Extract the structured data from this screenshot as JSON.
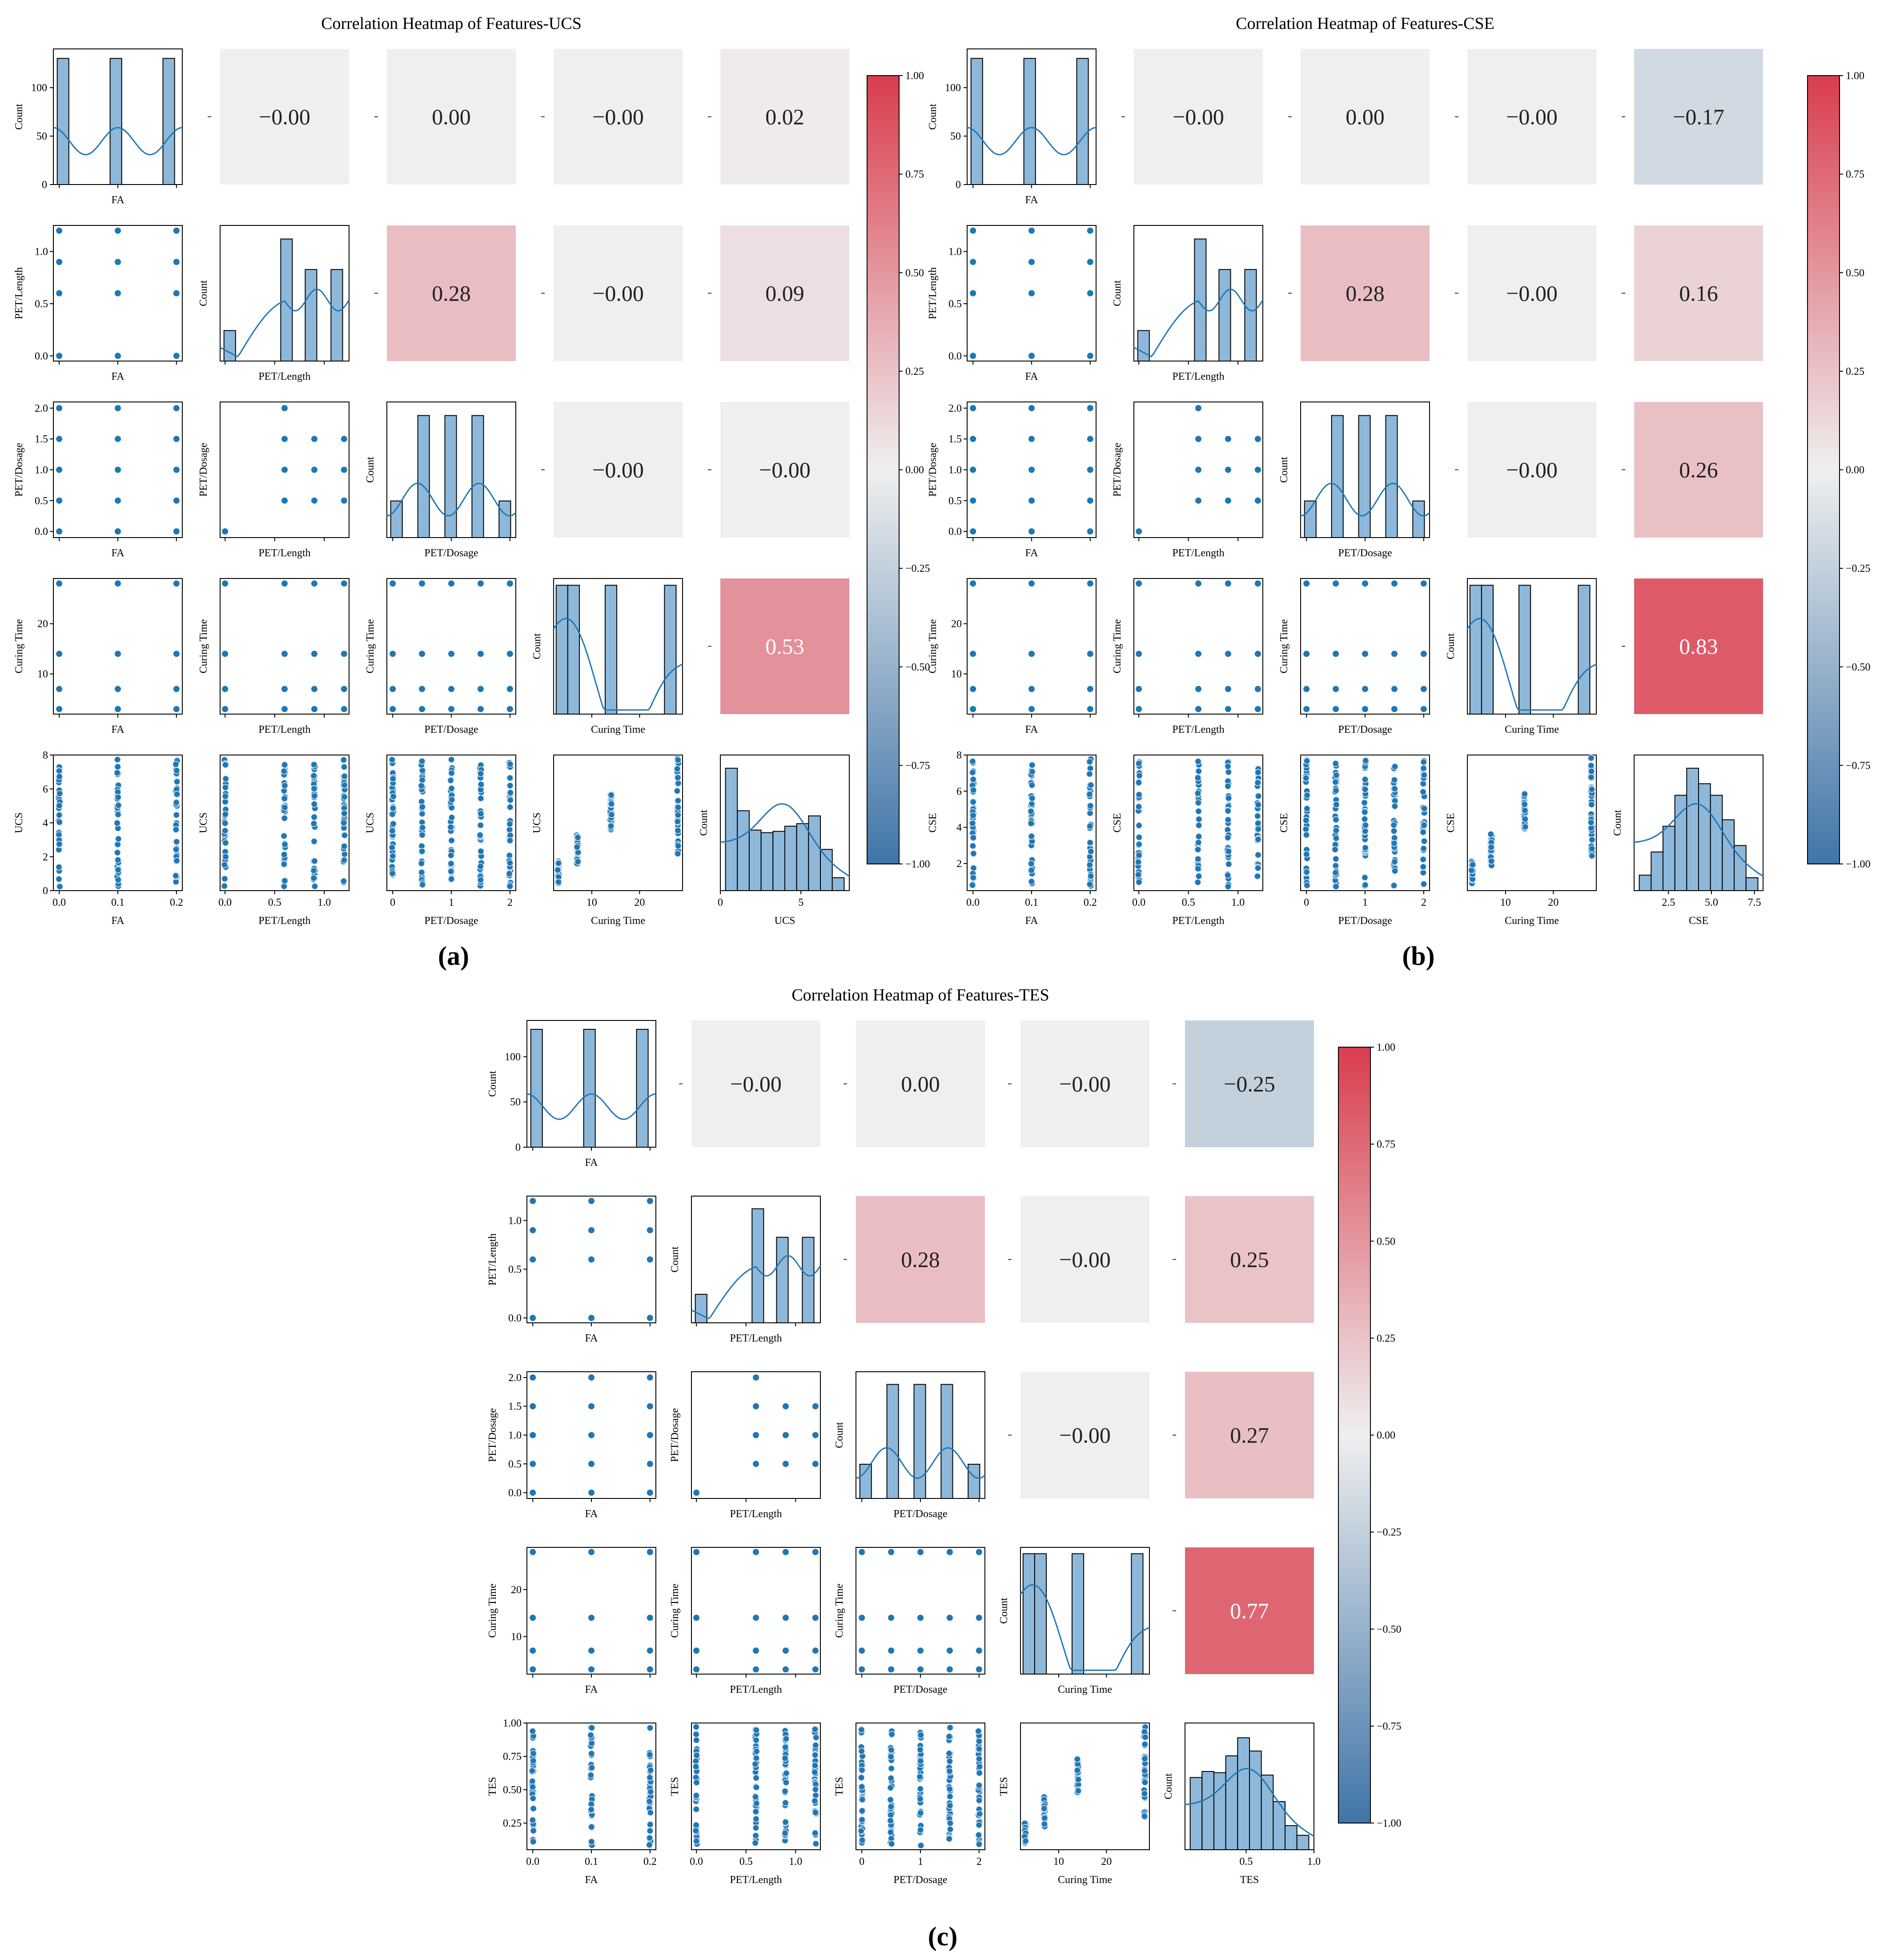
{
  "figure": {
    "panels": [
      {
        "title": "Correlation Heatmap of Features-UCS",
        "label": "(a)"
      },
      {
        "title": "Correlation Heatmap of Features-CSE",
        "label": "(b)"
      },
      {
        "title": "Correlation Heatmap of Features-TES",
        "label": "(c)"
      }
    ],
    "colorbar_ticks": [
      "1.00",
      "0.75",
      "0.50",
      "0.25",
      "0.00",
      "−0.25",
      "−0.50",
      "−0.75",
      "−1.00"
    ],
    "colors": {
      "point": "#1f77b4",
      "hist_fill": "#8db8da",
      "kde_line": "#1f77b4",
      "positive": "#d93d4e",
      "neutral": "#efefef",
      "negative": "#3f75a8"
    }
  },
  "chart_data": [
    {
      "type": "heatmap",
      "title": "Correlation Heatmap of Features-UCS",
      "panel_label": "(a)",
      "variables": [
        "FA",
        "PET/Length",
        "PET/Dosage",
        "Curing Time",
        "UCS"
      ],
      "upper_triangle_correlations": [
        {
          "row": "FA",
          "col": "PET/Length",
          "value": "−0.00"
        },
        {
          "row": "FA",
          "col": "PET/Dosage",
          "value": "0.00"
        },
        {
          "row": "FA",
          "col": "Curing Time",
          "value": "−0.00"
        },
        {
          "row": "FA",
          "col": "UCS",
          "value": "0.02"
        },
        {
          "row": "PET/Length",
          "col": "PET/Dosage",
          "value": "0.28"
        },
        {
          "row": "PET/Length",
          "col": "Curing Time",
          "value": "−0.00"
        },
        {
          "row": "PET/Length",
          "col": "UCS",
          "value": "0.09"
        },
        {
          "row": "PET/Dosage",
          "col": "Curing Time",
          "value": "−0.00"
        },
        {
          "row": "PET/Dosage",
          "col": "UCS",
          "value": "−0.00"
        },
        {
          "row": "Curing Time",
          "col": "UCS",
          "value": "0.53"
        }
      ],
      "colorbar_range": [
        -1,
        1
      ],
      "target_axis_ticks": [
        "0",
        "2",
        "4",
        "6",
        "8"
      ],
      "target_diag_ticks": [
        "0",
        "5"
      ],
      "target_range": [
        0,
        8
      ]
    },
    {
      "type": "heatmap",
      "title": "Correlation Heatmap of Features-CSE",
      "panel_label": "(b)",
      "variables": [
        "FA",
        "PET/Length",
        "PET/Dosage",
        "Curing Time",
        "CSE"
      ],
      "upper_triangle_correlations": [
        {
          "row": "FA",
          "col": "PET/Length",
          "value": "−0.00"
        },
        {
          "row": "FA",
          "col": "PET/Dosage",
          "value": "0.00"
        },
        {
          "row": "FA",
          "col": "Curing Time",
          "value": "−0.00"
        },
        {
          "row": "FA",
          "col": "CSE",
          "value": "−0.17"
        },
        {
          "row": "PET/Length",
          "col": "PET/Dosage",
          "value": "0.28"
        },
        {
          "row": "PET/Length",
          "col": "Curing Time",
          "value": "−0.00"
        },
        {
          "row": "PET/Length",
          "col": "CSE",
          "value": "0.16"
        },
        {
          "row": "PET/Dosage",
          "col": "Curing Time",
          "value": "−0.00"
        },
        {
          "row": "PET/Dosage",
          "col": "CSE",
          "value": "0.26"
        },
        {
          "row": "Curing Time",
          "col": "CSE",
          "value": "0.83"
        }
      ],
      "colorbar_range": [
        -1,
        1
      ],
      "target_axis_ticks": [
        "2",
        "4",
        "6",
        "8"
      ],
      "target_diag_ticks": [
        "2.5",
        "5.0",
        "7.5"
      ],
      "target_range": [
        0.5,
        8
      ]
    },
    {
      "type": "heatmap",
      "title": "Correlation Heatmap of Features-TES",
      "panel_label": "(c)",
      "variables": [
        "FA",
        "PET/Length",
        "PET/Dosage",
        "Curing Time",
        "TES"
      ],
      "upper_triangle_correlations": [
        {
          "row": "FA",
          "col": "PET/Length",
          "value": "−0.00"
        },
        {
          "row": "FA",
          "col": "PET/Dosage",
          "value": "0.00"
        },
        {
          "row": "FA",
          "col": "Curing Time",
          "value": "−0.00"
        },
        {
          "row": "FA",
          "col": "TES",
          "value": "−0.25"
        },
        {
          "row": "PET/Length",
          "col": "PET/Dosage",
          "value": "0.28"
        },
        {
          "row": "PET/Length",
          "col": "Curing Time",
          "value": "−0.00"
        },
        {
          "row": "PET/Length",
          "col": "TES",
          "value": "0.25"
        },
        {
          "row": "PET/Dosage",
          "col": "Curing Time",
          "value": "−0.00"
        },
        {
          "row": "PET/Dosage",
          "col": "TES",
          "value": "0.27"
        },
        {
          "row": "Curing Time",
          "col": "TES",
          "value": "0.77"
        }
      ],
      "colorbar_range": [
        -1,
        1
      ],
      "target_axis_ticks": [
        "0.25",
        "0.50",
        "0.75",
        "1.00"
      ],
      "target_diag_ticks": [
        "0.5",
        "1.0"
      ],
      "target_range": [
        0.05,
        1.0
      ]
    }
  ],
  "shared_axes": {
    "count_label": "Count",
    "count_ticks": [
      "0",
      "50",
      "100"
    ],
    "FA": {
      "levels": [
        0,
        0.1,
        0.2
      ],
      "ticks": [
        "0.0",
        "0.1",
        "0.2"
      ],
      "count_per_level": 130
    },
    "PET/Length": {
      "levels": [
        0,
        0.6,
        0.9,
        1.2
      ],
      "ticks": [
        "0.0",
        "0.5",
        "1.0"
      ],
      "tick_values": [
        0,
        0.5,
        1.0
      ],
      "hist_counts": [
        0.25,
        1,
        0.75,
        0.75
      ]
    },
    "PET/Dosage": {
      "levels": [
        0,
        0.5,
        1.0,
        1.5,
        2.0
      ],
      "ticks": [
        "0.0",
        "0.5",
        "1.0",
        "1.5",
        "2.0"
      ],
      "bottom_ticks": [
        "0",
        "1",
        "2"
      ],
      "hist_counts": [
        0.3,
        1,
        1,
        1,
        0.3
      ]
    },
    "Curing Time": {
      "levels": [
        3,
        7,
        14,
        28
      ],
      "ticks": [
        "10",
        "20"
      ],
      "tick_values": [
        10,
        20
      ],
      "hist_counts": [
        1,
        1,
        1,
        1
      ]
    }
  }
}
